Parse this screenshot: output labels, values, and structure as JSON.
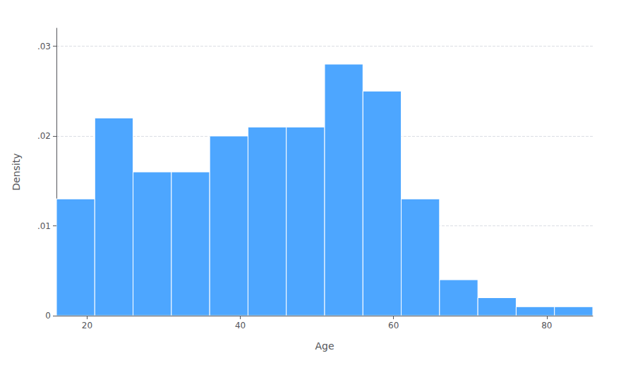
{
  "chart_data": {
    "type": "histogram",
    "bins": [
      16,
      21,
      26,
      31,
      36,
      41,
      46,
      51,
      56,
      61,
      66,
      71,
      76,
      81,
      86
    ],
    "values": [
      0.013,
      0.022,
      0.016,
      0.016,
      0.02,
      0.021,
      0.021,
      0.028,
      0.025,
      0.013,
      0.004,
      0.002,
      0.001,
      0.001
    ],
    "color": "#4da6ff",
    "xlabel": "Age",
    "ylabel": "Density",
    "xlim": [
      16,
      86
    ],
    "ylim": [
      0,
      0.032
    ],
    "xticks": [
      20,
      40,
      60,
      80
    ],
    "yticks": [
      0,
      {
        "value": 0.01,
        "label": ".01"
      },
      {
        "value": 0.02,
        "label": ".02"
      },
      {
        "value": 0.03,
        "label": ".03"
      }
    ],
    "grid": "y"
  }
}
